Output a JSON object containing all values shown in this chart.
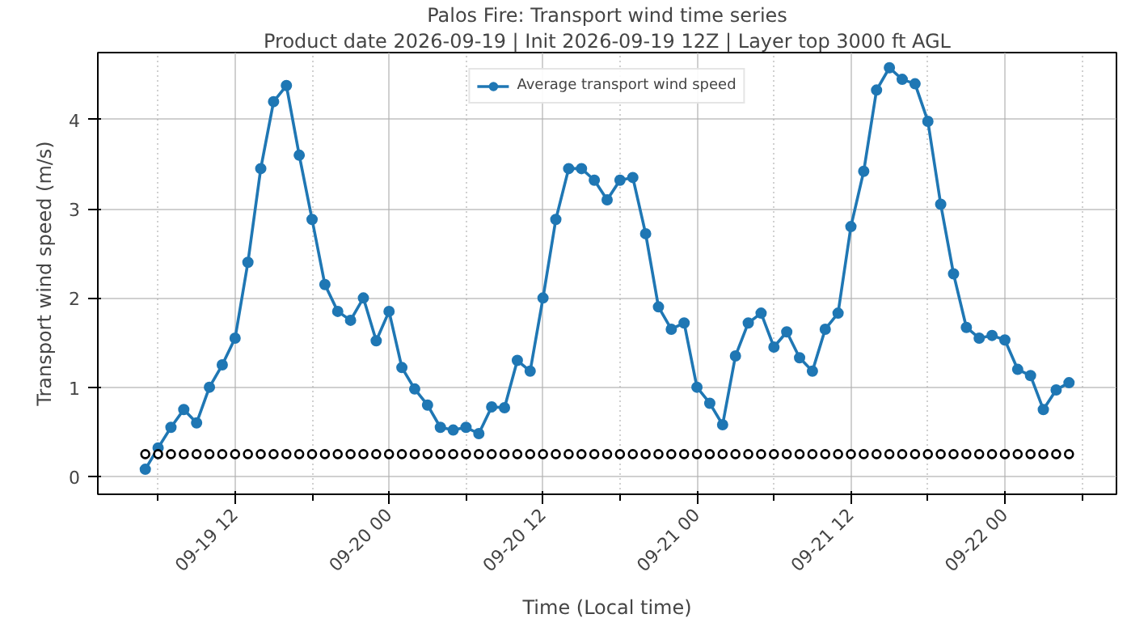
{
  "chart_data": {
    "type": "line",
    "title": "Palos Fire: Transport wind time series",
    "subtitle": "Product date 2026-09-19 | Init 2026-09-19 12Z | Layer top 3000 ft AGL",
    "xlabel": "Time (Local time)",
    "ylabel": "Transport wind speed (m/s)",
    "x": [
      "2026-09-19T05:00",
      "2026-09-19T06:00",
      "2026-09-19T07:00",
      "2026-09-19T08:00",
      "2026-09-19T09:00",
      "2026-09-19T10:00",
      "2026-09-19T11:00",
      "2026-09-19T12:00",
      "2026-09-19T13:00",
      "2026-09-19T14:00",
      "2026-09-19T15:00",
      "2026-09-19T16:00",
      "2026-09-19T17:00",
      "2026-09-19T18:00",
      "2026-09-19T19:00",
      "2026-09-19T20:00",
      "2026-09-19T21:00",
      "2026-09-19T22:00",
      "2026-09-19T23:00",
      "2026-09-20T00:00",
      "2026-09-20T01:00",
      "2026-09-20T02:00",
      "2026-09-20T03:00",
      "2026-09-20T04:00",
      "2026-09-20T05:00",
      "2026-09-20T06:00",
      "2026-09-20T07:00",
      "2026-09-20T08:00",
      "2026-09-20T09:00",
      "2026-09-20T10:00",
      "2026-09-20T11:00",
      "2026-09-20T12:00",
      "2026-09-20T13:00",
      "2026-09-20T14:00",
      "2026-09-20T15:00",
      "2026-09-20T16:00",
      "2026-09-20T17:00",
      "2026-09-20T18:00",
      "2026-09-20T19:00",
      "2026-09-20T20:00",
      "2026-09-20T21:00",
      "2026-09-20T22:00",
      "2026-09-20T23:00",
      "2026-09-21T00:00",
      "2026-09-21T01:00",
      "2026-09-21T02:00",
      "2026-09-21T03:00",
      "2026-09-21T04:00",
      "2026-09-21T05:00",
      "2026-09-21T06:00",
      "2026-09-21T07:00",
      "2026-09-21T08:00",
      "2026-09-21T09:00",
      "2026-09-21T10:00",
      "2026-09-21T11:00",
      "2026-09-21T12:00",
      "2026-09-21T13:00",
      "2026-09-21T14:00",
      "2026-09-21T15:00",
      "2026-09-21T16:00",
      "2026-09-21T17:00",
      "2026-09-21T18:00",
      "2026-09-21T19:00",
      "2026-09-21T20:00",
      "2026-09-21T21:00",
      "2026-09-21T22:00",
      "2026-09-21T23:00",
      "2026-09-22T00:00",
      "2026-09-22T01:00",
      "2026-09-22T02:00",
      "2026-09-22T03:00",
      "2026-09-22T04:00",
      "2026-09-22T05:00"
    ],
    "series": [
      {
        "name": "Average transport wind speed",
        "marker": "circle",
        "color": "#1f77b4",
        "values": [
          0.08,
          0.32,
          0.55,
          0.75,
          0.6,
          1.0,
          1.25,
          1.55,
          2.4,
          3.45,
          4.2,
          4.38,
          3.6,
          2.88,
          2.15,
          1.85,
          1.75,
          2.0,
          1.52,
          1.85,
          1.22,
          0.98,
          0.8,
          0.55,
          0.52,
          0.55,
          0.48,
          0.78,
          0.77,
          1.3,
          1.18,
          2.0,
          2.88,
          3.45,
          3.45,
          3.32,
          3.1,
          3.32,
          3.35,
          2.72,
          1.9,
          1.65,
          1.72,
          1.0,
          0.82,
          0.58,
          1.35,
          1.72,
          1.83,
          1.45,
          1.62,
          1.33,
          1.18,
          1.65,
          1.83,
          2.8,
          3.42,
          4.33,
          4.58,
          4.45,
          4.4,
          3.98,
          3.05,
          2.27,
          1.67,
          1.55,
          1.58,
          1.53,
          1.2,
          1.13,
          0.75,
          0.97,
          1.05
        ]
      },
      {
        "type": "scatter",
        "marker": "circle",
        "color": "#000000",
        "values": [
          0.25,
          0.25,
          0.25,
          0.25,
          0.25,
          0.25,
          0.25,
          0.25,
          0.25,
          0.25,
          0.25,
          0.25,
          0.25,
          0.25,
          0.25,
          0.25,
          0.25,
          0.25,
          0.25,
          0.25,
          0.25,
          0.25,
          0.25,
          0.25,
          0.25,
          0.25,
          0.25,
          0.25,
          0.25,
          0.25,
          0.25,
          0.25,
          0.25,
          0.25,
          0.25,
          0.25,
          0.25,
          0.25,
          0.25,
          0.25,
          0.25,
          0.25,
          0.25,
          0.25,
          0.25,
          0.25,
          0.25,
          0.25,
          0.25,
          0.25,
          0.25,
          0.25,
          0.25,
          0.25,
          0.25,
          0.25,
          0.25,
          0.25,
          0.25,
          0.25,
          0.25,
          0.25,
          0.25,
          0.25,
          0.25,
          0.25,
          0.25,
          0.25,
          0.25,
          0.25,
          0.25,
          0.25,
          0.25
        ]
      }
    ],
    "xlim": [
      "2026-09-19T01:18",
      "2026-09-22T08:42"
    ],
    "xticks": [
      {
        "value": "2026-09-19T06:00",
        "label": null
      },
      {
        "value": "2026-09-19T12:00",
        "label": "09-19 12"
      },
      {
        "value": "2026-09-19T18:00",
        "label": null
      },
      {
        "value": "2026-09-20T00:00",
        "label": "09-20 00"
      },
      {
        "value": "2026-09-20T06:00",
        "label": null
      },
      {
        "value": "2026-09-20T12:00",
        "label": "09-20 12"
      },
      {
        "value": "2026-09-20T18:00",
        "label": null
      },
      {
        "value": "2026-09-21T00:00",
        "label": "09-21 00"
      },
      {
        "value": "2026-09-21T06:00",
        "label": null
      },
      {
        "value": "2026-09-21T12:00",
        "label": "09-21 12"
      },
      {
        "value": "2026-09-21T18:00",
        "label": null
      },
      {
        "value": "2026-09-22T00:00",
        "label": "09-22 00"
      },
      {
        "value": "2026-09-22T06:00",
        "label": null
      }
    ],
    "ylim": [
      -0.2,
      4.75
    ],
    "yticks": [
      0,
      1,
      2,
      3,
      4
    ],
    "grid": true,
    "legend": "top"
  }
}
